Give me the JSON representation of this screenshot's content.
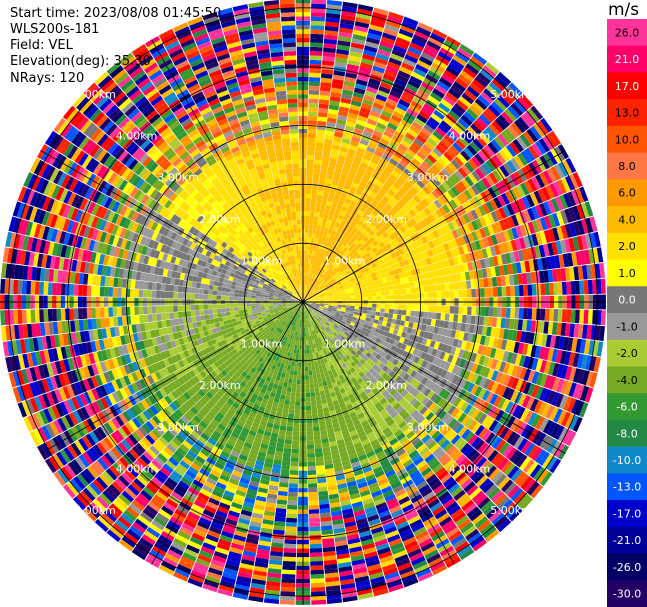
{
  "header": {
    "start_time": "Start time: 2023/08/08 01:45:50",
    "instrument": "WLS200s-181",
    "field": "Field: VEL",
    "elevation": "Elevation(deg): 35.30",
    "nrays": "NRays: 120"
  },
  "colorbar": {
    "unit": "m/s",
    "ticks": [
      "26.0",
      "21.0",
      "17.0",
      "13.0",
      "10.0",
      "8.0",
      "6.0",
      "4.0",
      "2.0",
      "1.0",
      "0.0",
      "-1.0",
      "-2.0",
      "-4.0",
      "-6.0",
      "-8.0",
      "-10.0",
      "-13.0",
      "-17.0",
      "-21.0",
      "-26.0",
      "-30.0"
    ],
    "colors": [
      "#ff3399",
      "#ff0066",
      "#ff0000",
      "#ff2200",
      "#ff5500",
      "#ff7744",
      "#ff9900",
      "#ffbb00",
      "#ffe000",
      "#ffff00",
      "#777777",
      "#999999",
      "#aacc33",
      "#77aa22",
      "#339933",
      "#228844",
      "#1188cc",
      "#0055ff",
      "#0000cc",
      "#000099",
      "#000066",
      "#220066"
    ]
  },
  "chart_data": {
    "type": "ppi_radar",
    "field": "VEL",
    "nrays": 120,
    "elevation_deg": 35.3,
    "range_rings_km": [
      1,
      2,
      3,
      4,
      5
    ],
    "range_labels": [
      "1.00km",
      "2.00km",
      "3.00km",
      "4.00km",
      "5.00km"
    ],
    "spoke_step_deg": 30,
    "color_scale": {
      "bounds": [
        -30,
        -26,
        -21,
        -17,
        -13,
        -10,
        -8,
        -6,
        -4,
        -2,
        -1,
        0,
        1,
        2,
        4,
        6,
        8,
        10,
        13,
        17,
        21,
        26,
        30
      ],
      "colors": [
        "#220066",
        "#000066",
        "#000099",
        "#0000cc",
        "#0055ff",
        "#1188cc",
        "#228844",
        "#339933",
        "#77aa22",
        "#aacc33",
        "#999999",
        "#777777",
        "#ffff00",
        "#ffe000",
        "#ffbb00",
        "#ff9900",
        "#ff7744",
        "#ff5500",
        "#ff2200",
        "#ff0000",
        "#ff0066",
        "#ff3399"
      ]
    },
    "grid": true
  }
}
